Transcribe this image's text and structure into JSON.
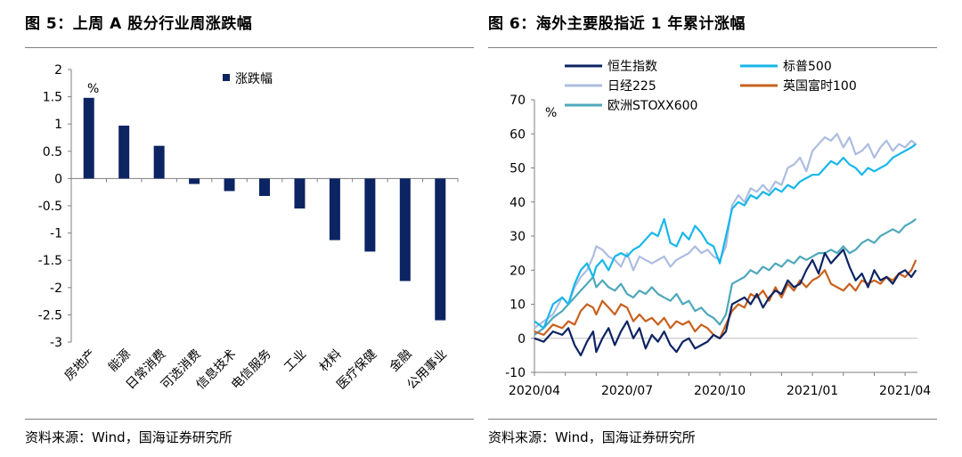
{
  "left": {
    "title": "图 5：上周 A 股分行业周涨跌幅",
    "source": "资料来源：Wind，国海证券研究所"
  },
  "right": {
    "title": "图 6：海外主要股指近 1 年累计涨幅",
    "source": "资料来源：Wind，国海证券研究所"
  },
  "colors": {
    "bar": "#0d2463",
    "hsi": "#0d2463",
    "sp500": "#17b7ea",
    "nikkei": "#adbde0",
    "ftse": "#c8611e",
    "stoxx": "#4ea8bb"
  },
  "chart_data": [
    {
      "type": "bar",
      "title": "",
      "ylabel": "%",
      "xlabel": "",
      "legend": "top-center",
      "ylim": [
        -3,
        2
      ],
      "yticks": [
        "2",
        "1.5",
        "1",
        "0.5",
        "0",
        "-0.5",
        "-1",
        "-1.5",
        "-2",
        "-2.5",
        "-3"
      ],
      "categories": [
        "房地产",
        "能源",
        "日常消费",
        "可选消费",
        "信息技术",
        "电信服务",
        "工业",
        "材料",
        "医疗保健",
        "金融",
        "公用事业"
      ],
      "series": [
        {
          "name": "涨跌幅",
          "values": [
            1.48,
            0.97,
            0.6,
            -0.1,
            -0.23,
            -0.32,
            -0.55,
            -1.13,
            -1.34,
            -1.88,
            -2.6
          ]
        }
      ],
      "grid": false
    },
    {
      "type": "line",
      "title": "",
      "ylabel": "%",
      "xlabel": "",
      "legend": "top",
      "ylim": [
        -10,
        70
      ],
      "yticks": [
        "70",
        "60",
        "50",
        "40",
        "30",
        "20",
        "10",
        "0",
        "-10"
      ],
      "x_ticks": [
        "2020/04",
        "2020/07",
        "2020/10",
        "2021/01",
        "2021/04"
      ],
      "x_tick_months": [
        0,
        3,
        6,
        9,
        12
      ],
      "x_month_range": [
        0,
        12.4
      ],
      "grid": false,
      "series": [
        {
          "name": "恒生指数",
          "key": "hsi",
          "x": [
            0,
            0.3,
            0.6,
            0.9,
            1.1,
            1.3,
            1.5,
            1.7,
            1.9,
            2.0,
            2.2,
            2.4,
            2.6,
            2.8,
            3.0,
            3.2,
            3.4,
            3.6,
            3.8,
            4.0,
            4.2,
            4.4,
            4.6,
            4.8,
            5.0,
            5.2,
            5.4,
            5.6,
            5.8,
            6.0,
            6.2,
            6.4,
            6.6,
            6.8,
            7.0,
            7.2,
            7.4,
            7.6,
            7.8,
            8.0,
            8.2,
            8.4,
            8.6,
            8.8,
            9.0,
            9.2,
            9.4,
            9.6,
            9.8,
            10.0,
            10.2,
            10.4,
            10.6,
            10.8,
            11.0,
            11.2,
            11.4,
            11.6,
            11.8,
            12.0,
            12.2,
            12.35
          ],
          "y": [
            0,
            -1,
            2,
            1,
            3,
            -2,
            -5,
            -1,
            2,
            -4,
            0,
            3,
            -2,
            2,
            5,
            0,
            3,
            -3,
            1,
            -1,
            2,
            -2,
            -4,
            -1,
            0,
            -3,
            -2,
            -1,
            1,
            0,
            2,
            10,
            11,
            12,
            10,
            13,
            9,
            12,
            14,
            13,
            17,
            15,
            16,
            20,
            23,
            19,
            25,
            22,
            24,
            26,
            21,
            17,
            19,
            15,
            20,
            17,
            18,
            16,
            19,
            20,
            18,
            20
          ]
        },
        {
          "name": "标普500",
          "key": "sp500",
          "x": [
            0,
            0.3,
            0.6,
            0.9,
            1.1,
            1.3,
            1.5,
            1.7,
            1.9,
            2.0,
            2.2,
            2.4,
            2.6,
            2.8,
            3.0,
            3.2,
            3.4,
            3.6,
            3.8,
            4.0,
            4.2,
            4.4,
            4.6,
            4.8,
            5.0,
            5.2,
            5.4,
            5.6,
            5.8,
            6.0,
            6.2,
            6.4,
            6.6,
            6.8,
            7.0,
            7.2,
            7.4,
            7.6,
            7.8,
            8.0,
            8.2,
            8.4,
            8.6,
            8.8,
            9.0,
            9.2,
            9.4,
            9.6,
            9.8,
            10.0,
            10.2,
            10.4,
            10.6,
            10.8,
            11.0,
            11.2,
            11.4,
            11.6,
            11.8,
            12.0,
            12.2,
            12.35
          ],
          "y": [
            5,
            3,
            10,
            12,
            10,
            16,
            20,
            22,
            18,
            21,
            23,
            20,
            24,
            25,
            24,
            26,
            27,
            29,
            31,
            30,
            35,
            28,
            27,
            31,
            29,
            33,
            31,
            28,
            27,
            22,
            30,
            38,
            40,
            39,
            42,
            41,
            43,
            42,
            44,
            43,
            45,
            44,
            46,
            47,
            48,
            48,
            50,
            52,
            51,
            53,
            51,
            50,
            48,
            50,
            49,
            50,
            51,
            53,
            54,
            55,
            56,
            57
          ]
        },
        {
          "name": "日经225",
          "key": "nikkei",
          "x": [
            0,
            0.3,
            0.6,
            0.9,
            1.1,
            1.3,
            1.5,
            1.7,
            1.9,
            2.0,
            2.2,
            2.4,
            2.6,
            2.8,
            3.0,
            3.2,
            3.4,
            3.6,
            3.8,
            4.0,
            4.2,
            4.4,
            4.6,
            4.8,
            5.0,
            5.2,
            5.4,
            5.6,
            5.8,
            6.0,
            6.2,
            6.4,
            6.6,
            6.8,
            7.0,
            7.2,
            7.4,
            7.6,
            7.8,
            8.0,
            8.2,
            8.4,
            8.6,
            8.8,
            9.0,
            9.2,
            9.4,
            9.6,
            9.8,
            10.0,
            10.2,
            10.4,
            10.6,
            10.8,
            11.0,
            11.2,
            11.4,
            11.6,
            11.8,
            12.0,
            12.2,
            12.35
          ],
          "y": [
            3,
            5,
            7,
            12,
            10,
            15,
            18,
            20,
            24,
            27,
            26,
            24,
            23,
            21,
            25,
            20,
            24,
            23,
            22,
            23,
            24,
            21,
            23,
            24,
            25,
            27,
            25,
            26,
            24,
            23,
            27,
            39,
            42,
            40,
            44,
            43,
            45,
            43,
            46,
            45,
            50,
            51,
            53,
            49,
            55,
            57,
            59,
            58,
            60,
            56,
            59,
            54,
            55,
            57,
            53,
            56,
            58,
            55,
            57,
            56,
            58,
            57
          ]
        },
        {
          "name": "英国富时100",
          "key": "ftse",
          "x": [
            0,
            0.3,
            0.6,
            0.9,
            1.1,
            1.3,
            1.5,
            1.7,
            1.9,
            2.0,
            2.2,
            2.4,
            2.6,
            2.8,
            3.0,
            3.2,
            3.4,
            3.6,
            3.8,
            4.0,
            4.2,
            4.4,
            4.6,
            4.8,
            5.0,
            5.2,
            5.4,
            5.6,
            5.8,
            6.0,
            6.2,
            6.4,
            6.6,
            6.8,
            7.0,
            7.2,
            7.4,
            7.6,
            7.8,
            8.0,
            8.2,
            8.4,
            8.6,
            8.8,
            9.0,
            9.2,
            9.4,
            9.6,
            9.8,
            10.0,
            10.2,
            10.4,
            10.6,
            10.8,
            11.0,
            11.2,
            11.4,
            11.6,
            11.8,
            12.0,
            12.2,
            12.35
          ],
          "y": [
            2,
            1,
            4,
            3,
            5,
            4,
            8,
            10,
            9,
            7,
            11,
            9,
            7,
            10,
            9,
            5,
            7,
            5,
            6,
            4,
            6,
            3,
            5,
            4,
            5,
            2,
            4,
            3,
            1,
            0,
            4,
            8,
            10,
            9,
            13,
            12,
            14,
            11,
            15,
            12,
            16,
            14,
            17,
            15,
            17,
            18,
            20,
            16,
            15,
            14,
            16,
            14,
            17,
            16,
            17,
            16,
            18,
            17,
            19,
            18,
            20,
            23
          ]
        },
        {
          "name": "欧洲STOXX600",
          "key": "stoxx",
          "x": [
            0,
            0.3,
            0.6,
            0.9,
            1.1,
            1.3,
            1.5,
            1.7,
            1.9,
            2.0,
            2.2,
            2.4,
            2.6,
            2.8,
            3.0,
            3.2,
            3.4,
            3.6,
            3.8,
            4.0,
            4.2,
            4.4,
            4.6,
            4.8,
            5.0,
            5.2,
            5.4,
            5.6,
            5.8,
            6.0,
            6.2,
            6.4,
            6.6,
            6.8,
            7.0,
            7.2,
            7.4,
            7.6,
            7.8,
            8.0,
            8.2,
            8.4,
            8.6,
            8.8,
            9.0,
            9.2,
            9.4,
            9.6,
            9.8,
            10.0,
            10.2,
            10.4,
            10.6,
            10.8,
            11.0,
            11.2,
            11.4,
            11.6,
            11.8,
            12.0,
            12.2,
            12.35
          ],
          "y": [
            1,
            3,
            6,
            8,
            10,
            12,
            14,
            16,
            18,
            15,
            17,
            15,
            14,
            16,
            13,
            12,
            14,
            13,
            15,
            13,
            12,
            11,
            13,
            10,
            11,
            8,
            9,
            7,
            6,
            4,
            7,
            16,
            17,
            18,
            20,
            19,
            21,
            20,
            22,
            21,
            23,
            22,
            24,
            23,
            24,
            25,
            25,
            26,
            25,
            27,
            25,
            26,
            28,
            29,
            28,
            30,
            31,
            32,
            31,
            33,
            34,
            35
          ]
        }
      ]
    }
  ]
}
